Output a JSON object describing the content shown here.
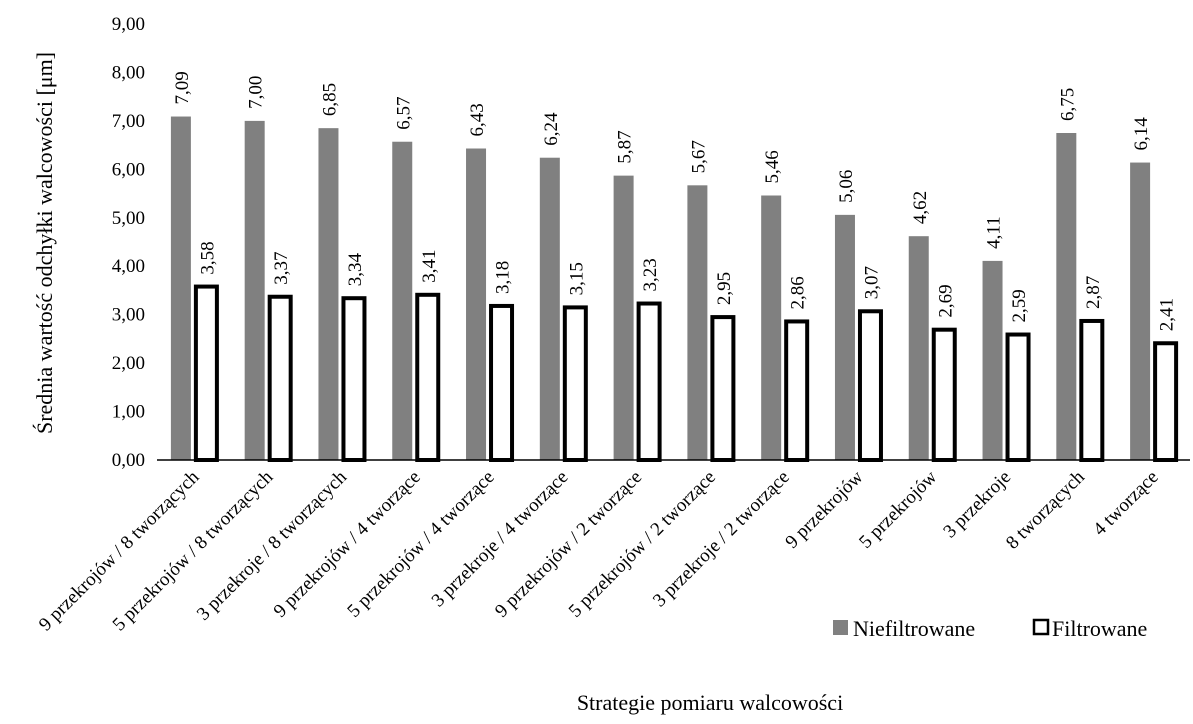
{
  "chart_data": {
    "type": "bar",
    "title": "",
    "xlabel": "Strategie pomiaru walcowości",
    "ylabel": "Średnia wartość odchyłki walcowości [μm]",
    "ylim": [
      0,
      9
    ],
    "yticks": [
      "0,00",
      "1,00",
      "2,00",
      "3,00",
      "4,00",
      "5,00",
      "6,00",
      "7,00",
      "8,00",
      "9,00"
    ],
    "grid": false,
    "legend_position": "bottom-right",
    "categories": [
      "9 przekrojów / 8 tworzących",
      "5 przekrojów / 8 tworzących",
      "3 przekroje / 8 tworzących",
      "9 przekrojów / 4 tworzące",
      "5 przekrojów / 4 tworzące",
      "3 przekroje / 4 tworzące",
      "9 przekrojów / 2 tworzące",
      "5 przekrojów / 2 tworzące",
      "3 przekroje / 2 tworzące",
      "9 przekrojów",
      "5 przekrojów",
      "3 przekroje",
      "8 tworzących",
      "4 tworzące"
    ],
    "series": [
      {
        "name": "Niefiltrowane",
        "color": "#808080",
        "values": [
          7.09,
          7.0,
          6.85,
          6.57,
          6.43,
          6.24,
          5.87,
          5.67,
          5.46,
          5.06,
          4.62,
          4.11,
          6.75,
          6.14
        ],
        "labels": [
          "7,09",
          "7,00",
          "6,85",
          "6,57",
          "6,43",
          "6,24",
          "5,87",
          "5,67",
          "5,46",
          "5,06",
          "4,62",
          "4,11",
          "6,75",
          "6,14"
        ]
      },
      {
        "name": "Filtrowane",
        "color": "#ffffff",
        "stroke": "#000000",
        "values": [
          3.58,
          3.37,
          3.34,
          3.41,
          3.18,
          3.15,
          3.23,
          2.95,
          2.86,
          3.07,
          2.69,
          2.59,
          2.87,
          2.41
        ],
        "labels": [
          "3,58",
          "3,37",
          "3,34",
          "3,41",
          "3,18",
          "3,15",
          "3,23",
          "2,95",
          "2,86",
          "3,07",
          "2,69",
          "2,59",
          "2,87",
          "2,41"
        ]
      }
    ]
  }
}
